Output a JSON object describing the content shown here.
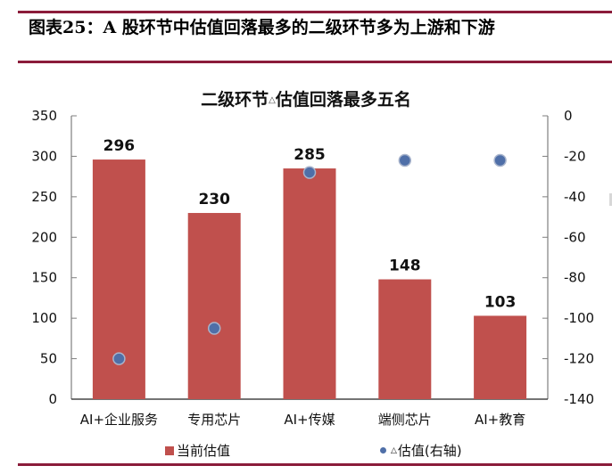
{
  "header": {
    "caption": "图表25：A 股环节中估值回落最多的二级环节多为上游和下游"
  },
  "colors": {
    "bar": "#c0504d",
    "dot": "#4f6fa8",
    "dot_border": "#a8b4cc",
    "rule": "#8b1c3a",
    "axis": "#7f7f7f"
  },
  "chart_data": {
    "type": "bar",
    "title": "二级环节△估值回落最多五名",
    "title_parts": {
      "before": "二级环节",
      "triangle": "△",
      "after": "估值回落最多五名"
    },
    "categories": [
      "AI+企业服务",
      "专用芯片",
      "AI+传媒",
      "端侧芯片",
      "AI+教育"
    ],
    "series": [
      {
        "name": "当前估值",
        "type": "bar",
        "axis": "left",
        "values": [
          296,
          230,
          285,
          148,
          103
        ],
        "data_labels": true
      },
      {
        "name": "△估值(右轴)",
        "type": "scatter",
        "axis": "right",
        "values": [
          -120,
          -105,
          -28,
          -22,
          -22
        ],
        "data_labels": false
      }
    ],
    "left_axis": {
      "ylim": [
        0,
        350
      ],
      "ticks": [
        350,
        300,
        250,
        200,
        150,
        100,
        50,
        0
      ]
    },
    "right_axis": {
      "ylim": [
        -140,
        0
      ],
      "ticks": [
        0,
        -20,
        -40,
        -60,
        -80,
        -100,
        -120,
        -140
      ]
    },
    "xlabel": "",
    "ylabel": "",
    "grid": false,
    "legend": {
      "position": "bottom",
      "entries": [
        {
          "label": "当前估值",
          "marker": "square"
        },
        {
          "label": "△估值(右轴)",
          "marker": "circle",
          "triangle": "△",
          "text": "估值(右轴)"
        }
      ]
    }
  }
}
